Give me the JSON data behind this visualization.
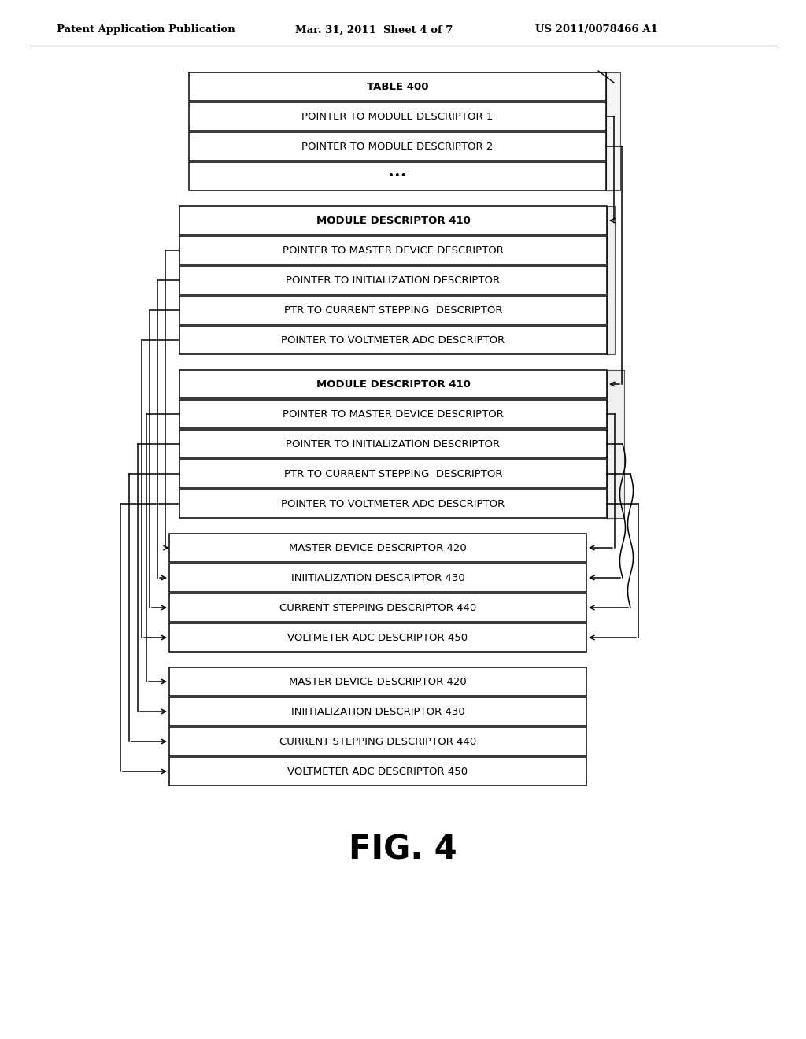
{
  "header_left": "Patent Application Publication",
  "header_mid": "Mar. 31, 2011  Sheet 4 of 7",
  "header_right": "US 2011/0078466 A1",
  "fig_label": "FIG. 4",
  "background": "#ffffff",
  "box_edge": "#000000",
  "text_color": "#000000",
  "table_boxes": [
    "TABLE 400",
    "POINTER TO MODULE DESCRIPTOR 1",
    "POINTER TO MODULE DESCRIPTOR 2",
    "•••"
  ],
  "mod1_boxes": [
    "MODULE DESCRIPTOR 410",
    "POINTER TO MASTER DEVICE DESCRIPTOR",
    "POINTER TO INITIALIZATION DESCRIPTOR",
    "PTR TO CURRENT STEPPING  DESCRIPTOR",
    "POINTER TO VOLTMETER ADC DESCRIPTOR"
  ],
  "mod2_boxes": [
    "MODULE DESCRIPTOR 410",
    "POINTER TO MASTER DEVICE DESCRIPTOR",
    "POINTER TO INITIALIZATION DESCRIPTOR",
    "PTR TO CURRENT STEPPING  DESCRIPTOR",
    "POINTER TO VOLTMETER ADC DESCRIPTOR"
  ],
  "shared1_boxes": [
    "MASTER DEVICE DESCRIPTOR 420",
    "INIITIALIZATION DESCRIPTOR 430",
    "CURRENT STEPPING DESCRIPTOR 440",
    "VOLTMETER ADC DESCRIPTOR 450"
  ],
  "shared2_boxes": [
    "MASTER DEVICE DESCRIPTOR 420",
    "INIITIALIZATION DESCRIPTOR 430",
    "CURRENT STEPPING DESCRIPTOR 440",
    "VOLTMETER ADC DESCRIPTOR 450"
  ]
}
